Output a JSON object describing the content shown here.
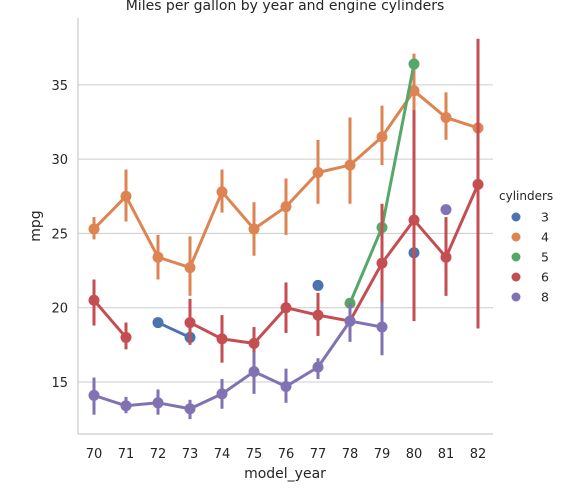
{
  "chart_data": {
    "type": "pointplot",
    "title": "Miles per gallon by year and engine cylinders",
    "xlabel": "model_year",
    "ylabel": "mpg",
    "categories": [
      "70",
      "71",
      "72",
      "73",
      "74",
      "75",
      "76",
      "77",
      "78",
      "79",
      "80",
      "81",
      "82"
    ],
    "yticks": [
      15,
      20,
      25,
      30,
      35
    ],
    "ylim": [
      11.5,
      39.5
    ],
    "grid": "horizontal",
    "legend": {
      "title": "cylinders",
      "placement": "right"
    },
    "series": [
      {
        "name": "3",
        "color": "#4c72b0",
        "values": [
          null,
          null,
          19.0,
          18.0,
          null,
          null,
          null,
          21.5,
          null,
          null,
          23.7,
          null,
          null
        ],
        "ci": [
          null,
          null,
          null,
          null,
          null,
          null,
          null,
          null,
          null,
          null,
          null,
          null,
          null
        ]
      },
      {
        "name": "4",
        "color": "#dd8452",
        "values": [
          25.3,
          27.5,
          23.4,
          22.7,
          27.8,
          25.3,
          26.8,
          29.1,
          29.6,
          31.5,
          34.6,
          32.8,
          32.1
        ],
        "ci": [
          [
            24.6,
            26.1
          ],
          [
            25.8,
            29.3
          ],
          [
            21.9,
            24.9
          ],
          [
            20.8,
            24.8
          ],
          [
            26.4,
            29.3
          ],
          [
            23.5,
            27.1
          ],
          [
            24.9,
            28.7
          ],
          [
            27.0,
            31.3
          ],
          [
            27.0,
            32.8
          ],
          [
            29.6,
            33.6
          ],
          [
            32.2,
            37.1
          ],
          [
            31.3,
            34.5
          ],
          [
            30.1,
            33.9
          ]
        ]
      },
      {
        "name": "5",
        "color": "#55a868",
        "values": [
          null,
          null,
          null,
          null,
          null,
          null,
          null,
          null,
          20.3,
          25.4,
          36.4,
          null,
          null
        ],
        "ci": [
          null,
          null,
          null,
          null,
          null,
          null,
          null,
          null,
          null,
          null,
          null,
          null,
          null
        ]
      },
      {
        "name": "6",
        "color": "#c44e52",
        "values": [
          20.5,
          18.0,
          null,
          19.0,
          17.9,
          17.6,
          20.0,
          19.5,
          19.1,
          23.0,
          25.9,
          23.4,
          28.3
        ],
        "ci": [
          [
            18.8,
            21.9
          ],
          [
            17.2,
            19.0
          ],
          null,
          [
            17.5,
            20.6
          ],
          [
            16.3,
            19.5
          ],
          [
            16.7,
            18.7
          ],
          [
            18.3,
            21.7
          ],
          [
            18.1,
            21.0
          ],
          [
            17.8,
            20.3
          ],
          [
            18.4,
            27.0
          ],
          [
            19.1,
            33.3
          ],
          [
            20.8,
            26.1
          ],
          [
            18.6,
            38.1
          ]
        ]
      },
      {
        "name": "8",
        "color": "#8172b3",
        "values": [
          14.1,
          13.4,
          13.6,
          13.2,
          14.2,
          15.7,
          14.7,
          16.0,
          19.1,
          18.7,
          null,
          26.6,
          null
        ],
        "ci": [
          [
            12.8,
            15.3
          ],
          [
            12.9,
            14.0
          ],
          [
            12.8,
            14.5
          ],
          [
            12.5,
            13.8
          ],
          [
            13.2,
            15.2
          ],
          [
            14.2,
            17.0
          ],
          [
            13.6,
            15.9
          ],
          [
            15.2,
            16.6
          ],
          [
            17.7,
            20.3
          ],
          [
            16.8,
            20.4
          ],
          null,
          null,
          null
        ]
      }
    ]
  }
}
